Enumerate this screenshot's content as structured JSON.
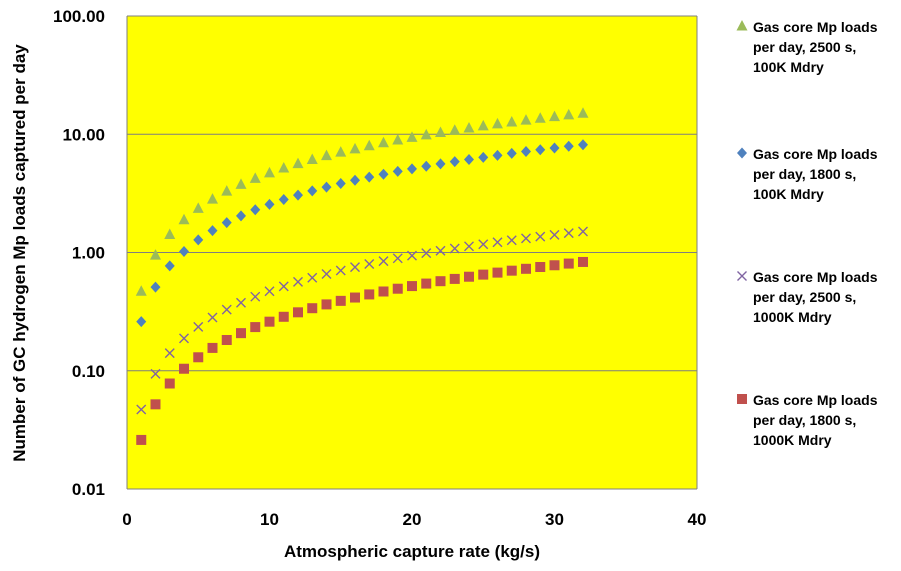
{
  "chart_data": {
    "type": "scatter",
    "title": "",
    "xlabel": "Atmospheric capture rate (kg/s)",
    "ylabel": "Number of GC hydrogen Mp loads captured per day",
    "xlim": [
      0,
      40
    ],
    "ylim": [
      0.01,
      100
    ],
    "yscale": "log",
    "x_ticks": [
      "0",
      "10",
      "20",
      "30",
      "40"
    ],
    "y_ticks": [
      "0.01",
      "0.10",
      "1.00",
      "10.00",
      "100.00"
    ],
    "plot_background": "#FFFF00",
    "gridlines": "horizontal",
    "legend_position": "right",
    "x": [
      1,
      2,
      3,
      4,
      5,
      6,
      7,
      8,
      9,
      10,
      11,
      12,
      13,
      14,
      15,
      16,
      17,
      18,
      19,
      20,
      21,
      22,
      23,
      24,
      25,
      26,
      27,
      28,
      29,
      30,
      31,
      32
    ],
    "series": [
      {
        "name": "Gas core Mp loads per day, 2500 s, 100K Mdry",
        "legend_lines": [
          "Gas core Mp loads",
          "per day, 2500 s,",
          "100K Mdry"
        ],
        "marker": "triangle",
        "color": "#9BBB59",
        "values": [
          0.47,
          0.95,
          1.42,
          1.89,
          2.36,
          2.83,
          3.3,
          3.77,
          4.24,
          4.71,
          5.18,
          5.65,
          6.12,
          6.59,
          7.06,
          7.53,
          8.0,
          8.47,
          8.94,
          9.41,
          9.88,
          10.35,
          10.82,
          11.29,
          11.76,
          12.23,
          12.7,
          13.17,
          13.64,
          14.11,
          14.58,
          15.05
        ]
      },
      {
        "name": "Gas core Mp loads per day, 1800 s, 100K Mdry",
        "legend_lines": [
          "Gas core Mp loads",
          "per day, 1800 s,",
          "100K Mdry"
        ],
        "marker": "diamond",
        "color": "#4F81BD",
        "values": [
          0.26,
          0.51,
          0.77,
          1.02,
          1.28,
          1.53,
          1.79,
          2.04,
          2.3,
          2.55,
          2.81,
          3.06,
          3.32,
          3.57,
          3.83,
          4.08,
          4.34,
          4.59,
          4.85,
          5.1,
          5.36,
          5.61,
          5.87,
          6.12,
          6.38,
          6.63,
          6.89,
          7.14,
          7.4,
          7.65,
          7.91,
          8.16
        ]
      },
      {
        "name": "Gas core Mp loads per day, 2500 s, 1000K Mdry",
        "legend_lines": [
          "Gas core Mp loads",
          "per day, 2500 s,",
          "1000K Mdry"
        ],
        "marker": "x",
        "color": "#8064A2",
        "values": [
          0.047,
          0.094,
          0.141,
          0.188,
          0.235,
          0.282,
          0.329,
          0.376,
          0.423,
          0.47,
          0.517,
          0.564,
          0.611,
          0.658,
          0.705,
          0.752,
          0.799,
          0.846,
          0.893,
          0.94,
          0.987,
          1.034,
          1.081,
          1.128,
          1.175,
          1.222,
          1.269,
          1.316,
          1.363,
          1.41,
          1.457,
          1.504
        ]
      },
      {
        "name": "Gas core Mp loads per day, 1800 s, 1000K Mdry",
        "legend_lines": [
          "Gas core Mp loads",
          "per day, 1800 s,",
          "1000K Mdry"
        ],
        "marker": "square",
        "color": "#C0504D",
        "values": [
          0.026,
          0.052,
          0.078,
          0.104,
          0.13,
          0.156,
          0.182,
          0.208,
          0.234,
          0.26,
          0.286,
          0.312,
          0.338,
          0.364,
          0.39,
          0.416,
          0.442,
          0.468,
          0.494,
          0.52,
          0.546,
          0.572,
          0.598,
          0.624,
          0.65,
          0.676,
          0.702,
          0.728,
          0.754,
          0.78,
          0.806,
          0.832
        ]
      }
    ]
  }
}
